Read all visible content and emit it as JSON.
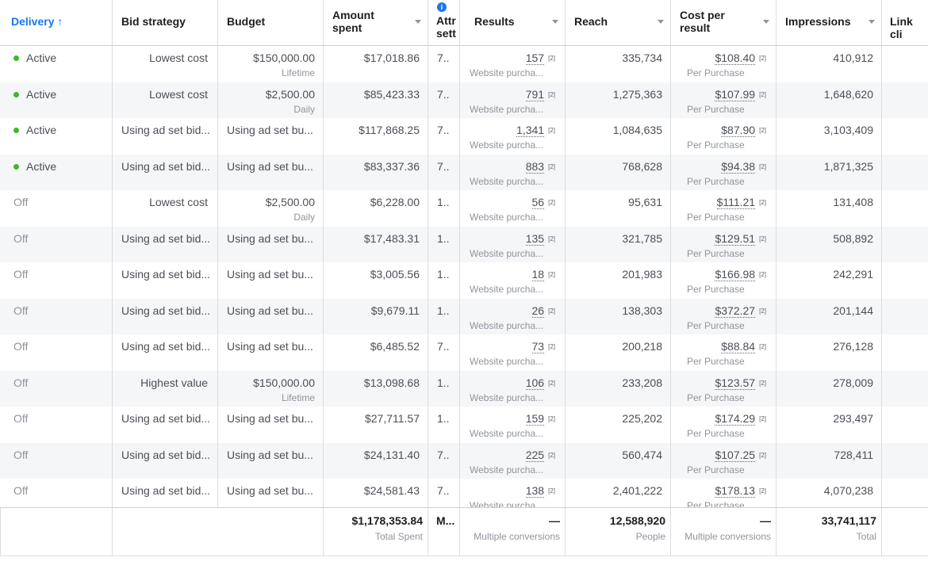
{
  "headers": {
    "delivery": "Delivery ↑",
    "bid_strategy": "Bid strategy",
    "budget": "Budget",
    "amount_spent_1": "Amount",
    "amount_spent_2": "spent",
    "attr_1": "Attr",
    "attr_2": "sett",
    "results": "Results",
    "reach": "Reach",
    "cost_per_result_1": "Cost per",
    "cost_per_result_2": "result",
    "impressions": "Impressions",
    "link_clicks": "Link cli"
  },
  "rows": [
    {
      "delivery": "Active",
      "bid": "Lowest cost",
      "budget": "$150,000.00",
      "budget_sub": "Lifetime",
      "spent": "$17,018.86",
      "attr": "7..",
      "results": "157",
      "results_sub": "Website purcha...",
      "reach": "335,734",
      "cpr": "$108.40",
      "cpr_sub": "Per Purchase",
      "impressions": "410,912"
    },
    {
      "delivery": "Active",
      "bid": "Lowest cost",
      "budget": "$2,500.00",
      "budget_sub": "Daily",
      "spent": "$85,423.33",
      "attr": "7..",
      "results": "791",
      "results_sub": "Website purcha...",
      "reach": "1,275,363",
      "cpr": "$107.99",
      "cpr_sub": "Per Purchase",
      "impressions": "1,648,620"
    },
    {
      "delivery": "Active",
      "bid": "Using ad set bid...",
      "budget": "Using ad set bu...",
      "budget_sub": "",
      "spent": "$117,868.25",
      "attr": "7..",
      "results": "1,341",
      "results_sub": "Website purcha...",
      "reach": "1,084,635",
      "cpr": "$87.90",
      "cpr_sub": "Per Purchase",
      "impressions": "3,103,409"
    },
    {
      "delivery": "Active",
      "bid": "Using ad set bid...",
      "budget": "Using ad set bu...",
      "budget_sub": "",
      "spent": "$83,337.36",
      "attr": "7..",
      "results": "883",
      "results_sub": "Website purcha...",
      "reach": "768,628",
      "cpr": "$94.38",
      "cpr_sub": "Per Purchase",
      "impressions": "1,871,325"
    },
    {
      "delivery": "Off",
      "bid": "Lowest cost",
      "budget": "$2,500.00",
      "budget_sub": "Daily",
      "spent": "$6,228.00",
      "attr": "1..",
      "results": "56",
      "results_sub": "Website purcha...",
      "reach": "95,631",
      "cpr": "$111.21",
      "cpr_sub": "Per Purchase",
      "impressions": "131,408"
    },
    {
      "delivery": "Off",
      "bid": "Using ad set bid...",
      "budget": "Using ad set bu...",
      "budget_sub": "",
      "spent": "$17,483.31",
      "attr": "1..",
      "results": "135",
      "results_sub": "Website purcha...",
      "reach": "321,785",
      "cpr": "$129.51",
      "cpr_sub": "Per Purchase",
      "impressions": "508,892"
    },
    {
      "delivery": "Off",
      "bid": "Using ad set bid...",
      "budget": "Using ad set bu...",
      "budget_sub": "",
      "spent": "$3,005.56",
      "attr": "1..",
      "results": "18",
      "results_sub": "Website purcha...",
      "reach": "201,983",
      "cpr": "$166.98",
      "cpr_sub": "Per Purchase",
      "impressions": "242,291"
    },
    {
      "delivery": "Off",
      "bid": "Using ad set bid...",
      "budget": "Using ad set bu...",
      "budget_sub": "",
      "spent": "$9,679.11",
      "attr": "1..",
      "results": "26",
      "results_sub": "Website purcha...",
      "reach": "138,303",
      "cpr": "$372.27",
      "cpr_sub": "Per Purchase",
      "impressions": "201,144"
    },
    {
      "delivery": "Off",
      "bid": "Using ad set bid...",
      "budget": "Using ad set bu...",
      "budget_sub": "",
      "spent": "$6,485.52",
      "attr": "7..",
      "results": "73",
      "results_sub": "Website purcha...",
      "reach": "200,218",
      "cpr": "$88.84",
      "cpr_sub": "Per Purchase",
      "impressions": "276,128"
    },
    {
      "delivery": "Off",
      "bid": "Highest value",
      "budget": "$150,000.00",
      "budget_sub": "Lifetime",
      "spent": "$13,098.68",
      "attr": "1..",
      "results": "106",
      "results_sub": "Website purcha...",
      "reach": "233,208",
      "cpr": "$123.57",
      "cpr_sub": "Per Purchase",
      "impressions": "278,009"
    },
    {
      "delivery": "Off",
      "bid": "Using ad set bid...",
      "budget": "Using ad set bu...",
      "budget_sub": "",
      "spent": "$27,711.57",
      "attr": "1..",
      "results": "159",
      "results_sub": "Website purcha...",
      "reach": "225,202",
      "cpr": "$174.29",
      "cpr_sub": "Per Purchase",
      "impressions": "293,497"
    },
    {
      "delivery": "Off",
      "bid": "Using ad set bid...",
      "budget": "Using ad set bu...",
      "budget_sub": "",
      "spent": "$24,131.40",
      "attr": "7..",
      "results": "225",
      "results_sub": "Website purcha...",
      "reach": "560,474",
      "cpr": "$107.25",
      "cpr_sub": "Per Purchase",
      "impressions": "728,411"
    },
    {
      "delivery": "Off",
      "bid": "Using ad set bid...",
      "budget": "Using ad set bu...",
      "budget_sub": "",
      "spent": "$24,581.43",
      "attr": "7..",
      "results": "138",
      "results_sub": "Website purcha...",
      "reach": "2,401,222",
      "cpr": "$178.13",
      "cpr_sub": "Per Purchase",
      "impressions": "4,070,238"
    }
  ],
  "footnote_mark": "[2]",
  "totals": {
    "spent": "$1,178,353.84",
    "spent_label": "Total Spent",
    "attr": "M...",
    "results": "—",
    "results_label": "Multiple conversions",
    "reach": "12,588,920",
    "reach_label": "People",
    "cpr": "—",
    "cpr_label": "Multiple conversions",
    "impressions": "33,741,117",
    "impressions_label": "Total"
  },
  "colors": {
    "active_dot": "#42b72a",
    "accent": "#1877f2",
    "alt_row": "#f5f6f7"
  },
  "icons": {
    "info": "info-icon",
    "sort": "arrow-up-icon",
    "column_menu": "caret-down-icon"
  }
}
